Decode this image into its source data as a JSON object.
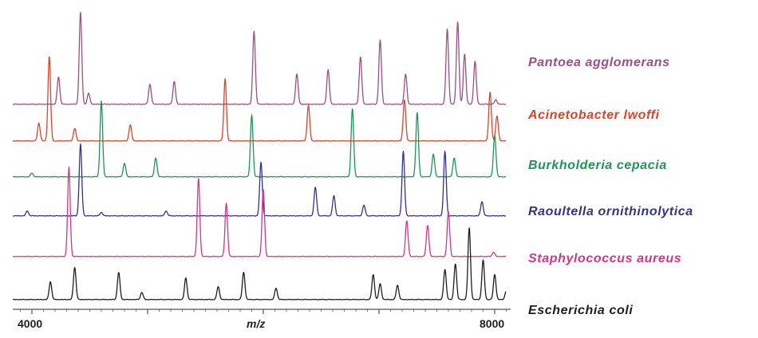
{
  "chart_data": {
    "type": "line",
    "title": "",
    "xlabel": "m/z",
    "ylabel": "",
    "xlim": [
      3800,
      8100
    ],
    "xticks": [
      4000,
      8000
    ],
    "xtick_labels": [
      "4000",
      "8000"
    ],
    "grid": false,
    "legend": "right",
    "series": [
      {
        "name": "Pantoea agglomerans",
        "color": "#9b4f86",
        "peaks": [
          [
            4230,
            0.3
          ],
          [
            4420,
            1.0
          ],
          [
            4490,
            0.12
          ],
          [
            5020,
            0.22
          ],
          [
            5230,
            0.25
          ],
          [
            5920,
            0.8
          ],
          [
            6290,
            0.33
          ],
          [
            6560,
            0.38
          ],
          [
            6840,
            0.52
          ],
          [
            7010,
            0.7
          ],
          [
            7230,
            0.33
          ],
          [
            7590,
            0.82
          ],
          [
            7680,
            0.9
          ],
          [
            7740,
            0.55
          ],
          [
            7830,
            0.47
          ],
          [
            8010,
            0.05
          ]
        ]
      },
      {
        "name": "Acinetobacter lwoffi",
        "color": "#d9452a",
        "peaks": [
          [
            4060,
            0.2
          ],
          [
            4150,
            0.95
          ],
          [
            4370,
            0.14
          ],
          [
            4850,
            0.18
          ],
          [
            5670,
            0.7
          ],
          [
            6390,
            0.4
          ],
          [
            7220,
            0.46
          ],
          [
            7960,
            0.55
          ],
          [
            8020,
            0.28
          ]
        ]
      },
      {
        "name": "Burkholderia cepacia",
        "color": "#1d9655",
        "peaks": [
          [
            4000,
            0.05
          ],
          [
            4600,
            1.0
          ],
          [
            4800,
            0.18
          ],
          [
            5070,
            0.25
          ],
          [
            5900,
            0.82
          ],
          [
            6770,
            0.9
          ],
          [
            7330,
            0.85
          ],
          [
            7470,
            0.3
          ],
          [
            7650,
            0.25
          ],
          [
            8000,
            0.55
          ]
        ]
      },
      {
        "name": "Raoultella ornithinolytica",
        "color": "#33338a",
        "peaks": [
          [
            3960,
            0.07
          ],
          [
            4420,
            1.0
          ],
          [
            4600,
            0.05
          ],
          [
            5160,
            0.07
          ],
          [
            5980,
            0.75
          ],
          [
            6450,
            0.4
          ],
          [
            6610,
            0.28
          ],
          [
            6870,
            0.15
          ],
          [
            7210,
            0.9
          ],
          [
            7570,
            0.9
          ],
          [
            7890,
            0.2
          ]
        ]
      },
      {
        "name": "Staphylococcus aureus",
        "color": "#d63589",
        "peaks": [
          [
            4320,
            1.0
          ],
          [
            5440,
            0.88
          ],
          [
            5680,
            0.6
          ],
          [
            6000,
            0.75
          ],
          [
            7240,
            0.4
          ],
          [
            7420,
            0.35
          ],
          [
            7600,
            0.5
          ],
          [
            7990,
            0.05
          ]
        ]
      },
      {
        "name": "Escherichia coli",
        "color": "#1e1e1e",
        "peaks": [
          [
            4160,
            0.25
          ],
          [
            4370,
            0.45
          ],
          [
            4750,
            0.38
          ],
          [
            4950,
            0.1
          ],
          [
            5330,
            0.3
          ],
          [
            5610,
            0.18
          ],
          [
            5830,
            0.38
          ],
          [
            6110,
            0.16
          ],
          [
            6950,
            0.35
          ],
          [
            7010,
            0.22
          ],
          [
            7160,
            0.2
          ],
          [
            7570,
            0.42
          ],
          [
            7660,
            0.5
          ],
          [
            7780,
            1.0
          ],
          [
            7900,
            0.55
          ],
          [
            8000,
            0.35
          ],
          [
            8100,
            0.12
          ]
        ]
      }
    ]
  }
}
